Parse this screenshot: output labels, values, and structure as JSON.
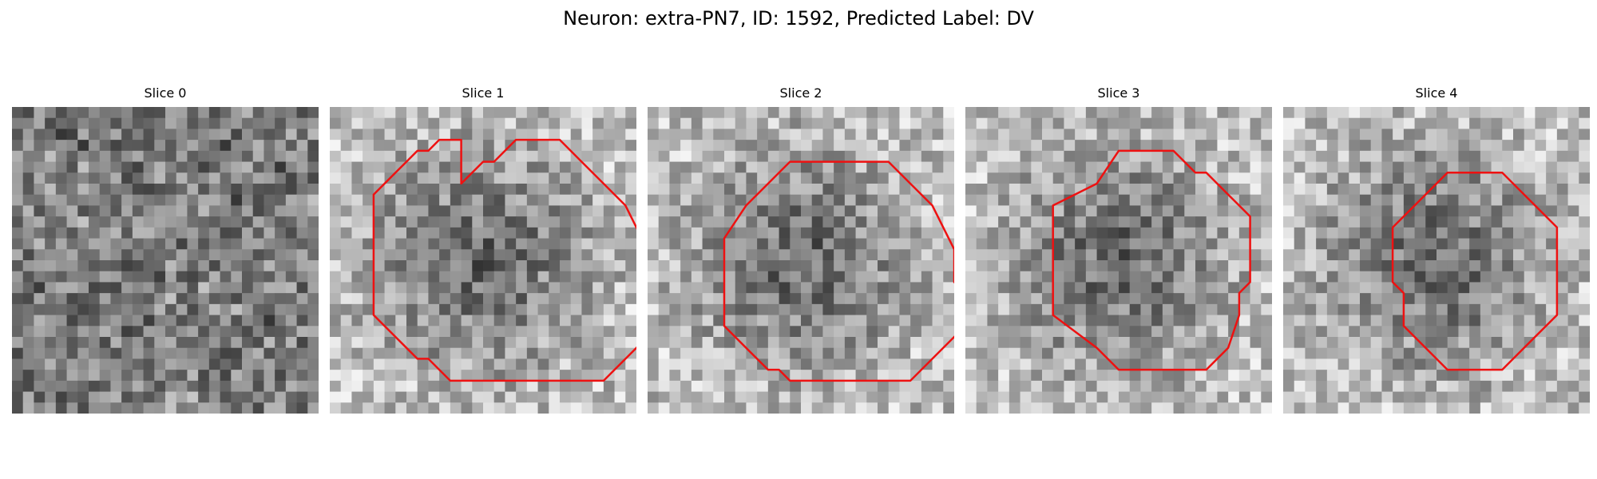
{
  "figure": {
    "title": "Neuron: extra-PN7, ID: 1592, Predicted Label: DV"
  },
  "panels": [
    {
      "title": "Slice 0",
      "seed": 11,
      "has_contour": false,
      "contour": []
    },
    {
      "title": "Slice 1",
      "seed": 23,
      "has_contour": true,
      "contour": [
        [
          9,
          4
        ],
        [
          11,
          2
        ],
        [
          12,
          2
        ],
        [
          14,
          0
        ],
        [
          18,
          0
        ],
        [
          20,
          2
        ],
        [
          24,
          6
        ],
        [
          25,
          8
        ],
        [
          26,
          10
        ],
        [
          27,
          11
        ],
        [
          27,
          17
        ],
        [
          25,
          19
        ],
        [
          22,
          22
        ],
        [
          8,
          22
        ],
        [
          6,
          20
        ],
        [
          5,
          20
        ],
        [
          3,
          18
        ],
        [
          1,
          16
        ],
        [
          1,
          5
        ],
        [
          3,
          3
        ],
        [
          5,
          1
        ],
        [
          6,
          1
        ],
        [
          7,
          0
        ],
        [
          9,
          0
        ]
      ]
    },
    {
      "title": "Slice 2",
      "seed": 37,
      "has_contour": true,
      "contour": [
        [
          9,
          3
        ],
        [
          10,
          2
        ],
        [
          19,
          2
        ],
        [
          21,
          4
        ],
        [
          23,
          6
        ],
        [
          24,
          8
        ],
        [
          25,
          10
        ],
        [
          25,
          13
        ],
        [
          26,
          14
        ],
        [
          26,
          17
        ],
        [
          23,
          20
        ],
        [
          21,
          22
        ],
        [
          10,
          22
        ],
        [
          9,
          21
        ],
        [
          8,
          21
        ],
        [
          6,
          19
        ],
        [
          4,
          17
        ],
        [
          4,
          9
        ],
        [
          6,
          6
        ],
        [
          8,
          4
        ]
      ]
    },
    {
      "title": "Slice 3",
      "seed": 53,
      "has_contour": true,
      "contour": [
        [
          11,
          1
        ],
        [
          16,
          1
        ],
        [
          18,
          3
        ],
        [
          19,
          3
        ],
        [
          20,
          4
        ],
        [
          21,
          5
        ],
        [
          23,
          7
        ],
        [
          23,
          13
        ],
        [
          22,
          14
        ],
        [
          22,
          16
        ],
        [
          21,
          19
        ],
        [
          19,
          21
        ],
        [
          11,
          21
        ],
        [
          9,
          19
        ],
        [
          5,
          16
        ],
        [
          5,
          6
        ],
        [
          9,
          4
        ]
      ]
    },
    {
      "title": "Slice 4",
      "seed": 71,
      "has_contour": true,
      "contour": [
        [
          12,
          3
        ],
        [
          17,
          3
        ],
        [
          20,
          6
        ],
        [
          22,
          8
        ],
        [
          22,
          16
        ],
        [
          20,
          18
        ],
        [
          17,
          21
        ],
        [
          12,
          21
        ],
        [
          8,
          17
        ],
        [
          8,
          14
        ],
        [
          7,
          13
        ],
        [
          7,
          8
        ],
        [
          9,
          6
        ]
      ]
    }
  ]
}
